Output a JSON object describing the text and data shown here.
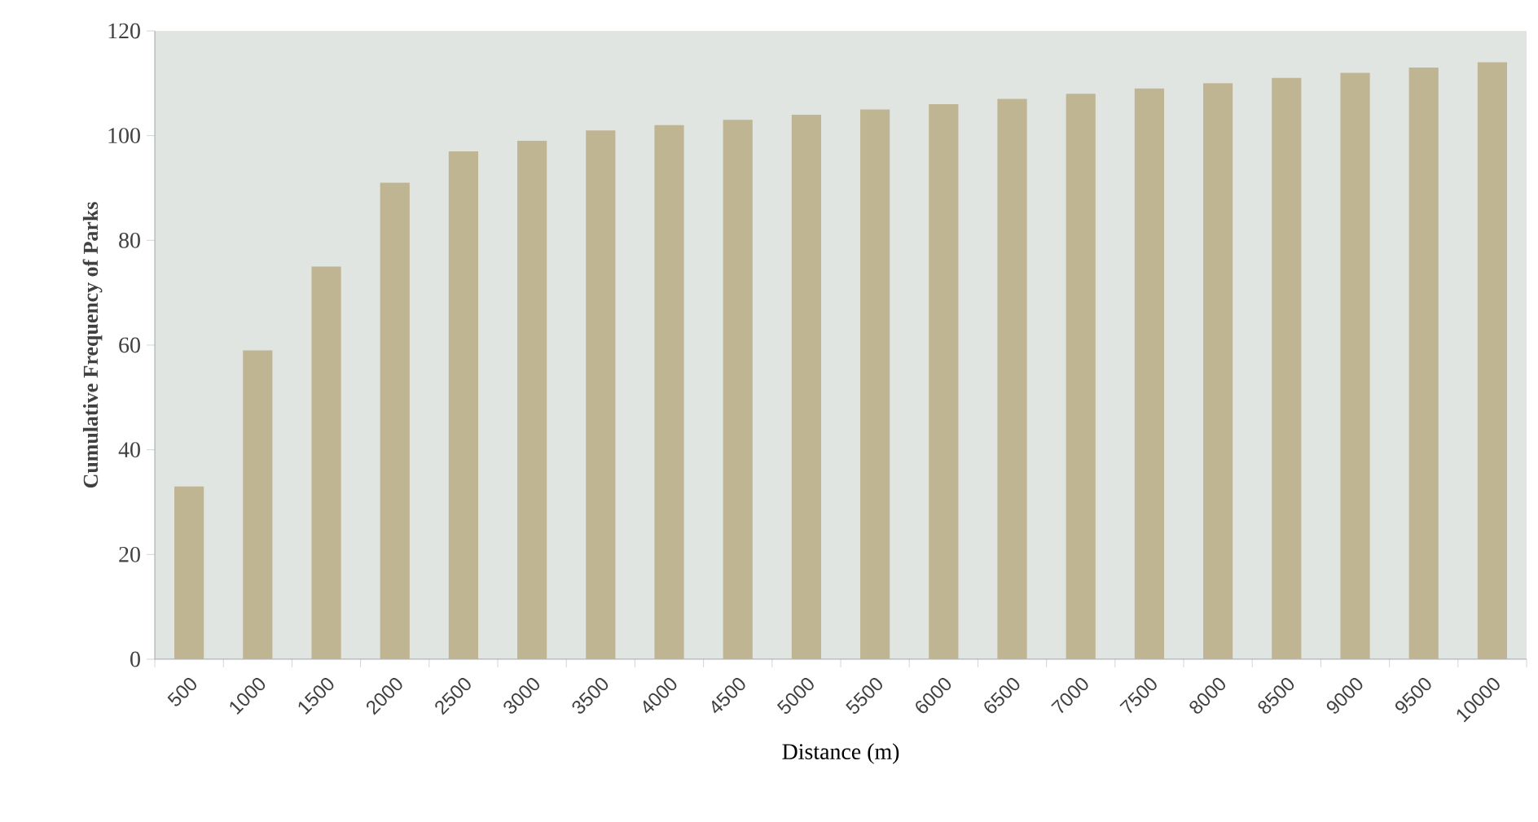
{
  "chart_data": {
    "type": "bar",
    "xlabel": "Distance (m)",
    "ylabel": "Cumulative Frequency of Parks",
    "categories": [
      "500",
      "1000",
      "1500",
      "2000",
      "2500",
      "3000",
      "3500",
      "4000",
      "4500",
      "5000",
      "5500",
      "6000",
      "6500",
      "7000",
      "7500",
      "8000",
      "8500",
      "9000",
      "9500",
      "10000"
    ],
    "values": [
      33,
      59,
      75,
      91,
      97,
      99,
      101,
      102,
      103,
      104,
      105,
      106,
      107,
      108,
      109,
      110,
      111,
      112,
      113,
      114
    ],
    "color": "#bfb593",
    "ylim": [
      0,
      120
    ],
    "yticks": [
      0,
      20,
      40,
      60,
      80,
      100,
      120
    ],
    "grid": false
  }
}
